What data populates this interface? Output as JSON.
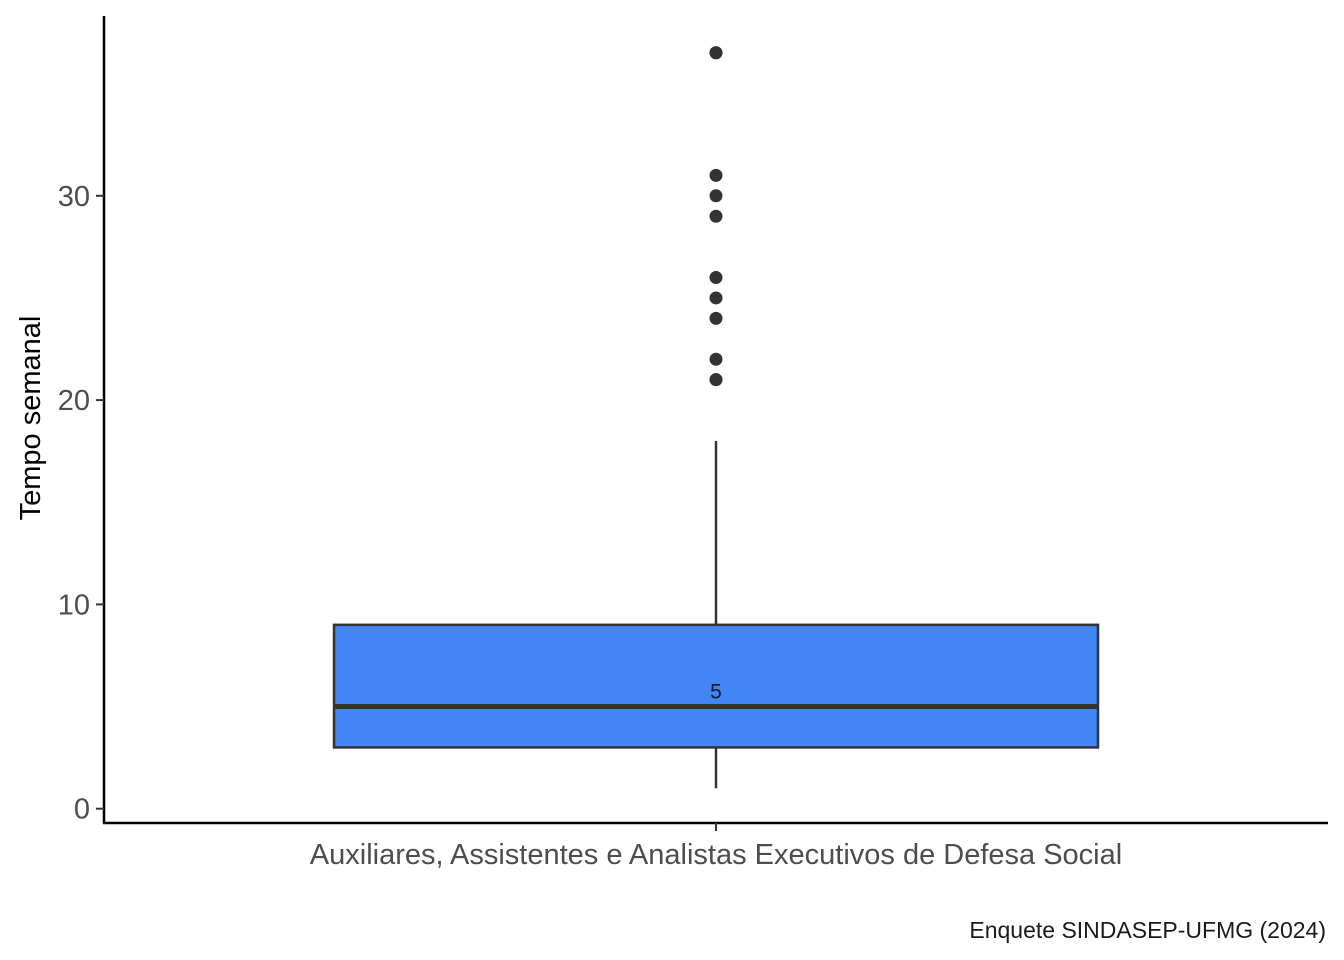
{
  "chart_data": {
    "type": "box",
    "categories": [
      "Auxiliares, Assistentes e Analistas Executivos de Defesa Social"
    ],
    "ylabel": "Tempo semanal",
    "xlabel": "",
    "ylim": [
      -0.7,
      38.8
    ],
    "yticks": [
      0,
      10,
      20,
      30
    ],
    "grid": false,
    "box": {
      "whisker_low": 1,
      "q1": 3,
      "median": 5,
      "q3": 9,
      "whisker_high": 18,
      "outliers": [
        21,
        21,
        22,
        24,
        25,
        26,
        29,
        30,
        31,
        37,
        37
      ],
      "median_label": "5"
    },
    "caption": "Enquete SINDASEP-UFMG (2024)",
    "colors": {
      "box_fill": "#4285F4",
      "box_stroke": "#333333",
      "points": "#333333",
      "axis": "#000000"
    }
  }
}
